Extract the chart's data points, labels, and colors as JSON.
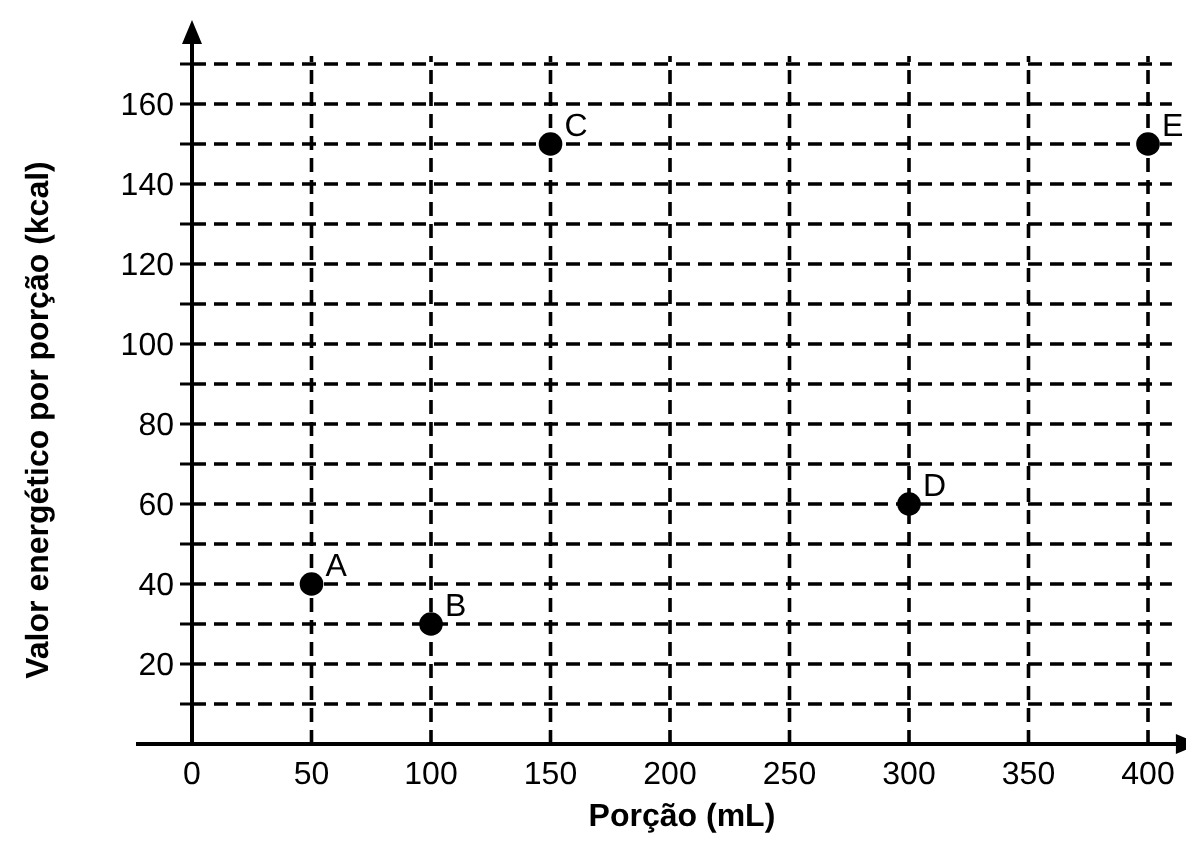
{
  "chart_data": {
    "type": "scatter",
    "xlabel": "Porção (mL)",
    "ylabel": "Valor energético por porção (kcal)",
    "x": [
      50,
      100,
      150,
      300,
      400
    ],
    "series": [
      {
        "color": "#000000",
        "values": [
          40,
          30,
          150,
          60,
          150
        ]
      }
    ],
    "marker": "circle",
    "xlim": [
      0,
      410
    ],
    "ylim": [
      0,
      172
    ],
    "xticks": [
      0,
      50,
      100,
      150,
      200,
      250,
      300,
      350,
      400
    ],
    "yticks": [
      {
        "value": 10,
        "label": null
      },
      20,
      {
        "value": 30,
        "label": null
      },
      40,
      {
        "value": 50,
        "label": null
      },
      60,
      {
        "value": 70,
        "label": null
      },
      80,
      {
        "value": 90,
        "label": null
      },
      100,
      {
        "value": 110,
        "label": null
      },
      120,
      {
        "value": 130,
        "label": null
      },
      140,
      {
        "value": 150,
        "label": null
      },
      160,
      {
        "value": 170,
        "label": null
      }
    ],
    "grid": true,
    "line_style": "dashed",
    "annotations": [
      {
        "text": "A",
        "x": 50,
        "y": 40
      },
      {
        "text": "B",
        "x": 100,
        "y": 30
      },
      {
        "text": "C",
        "x": 150,
        "y": 150
      },
      {
        "text": "D",
        "x": 300,
        "y": 60
      },
      {
        "text": "E",
        "x": 400,
        "y": 150
      }
    ]
  }
}
